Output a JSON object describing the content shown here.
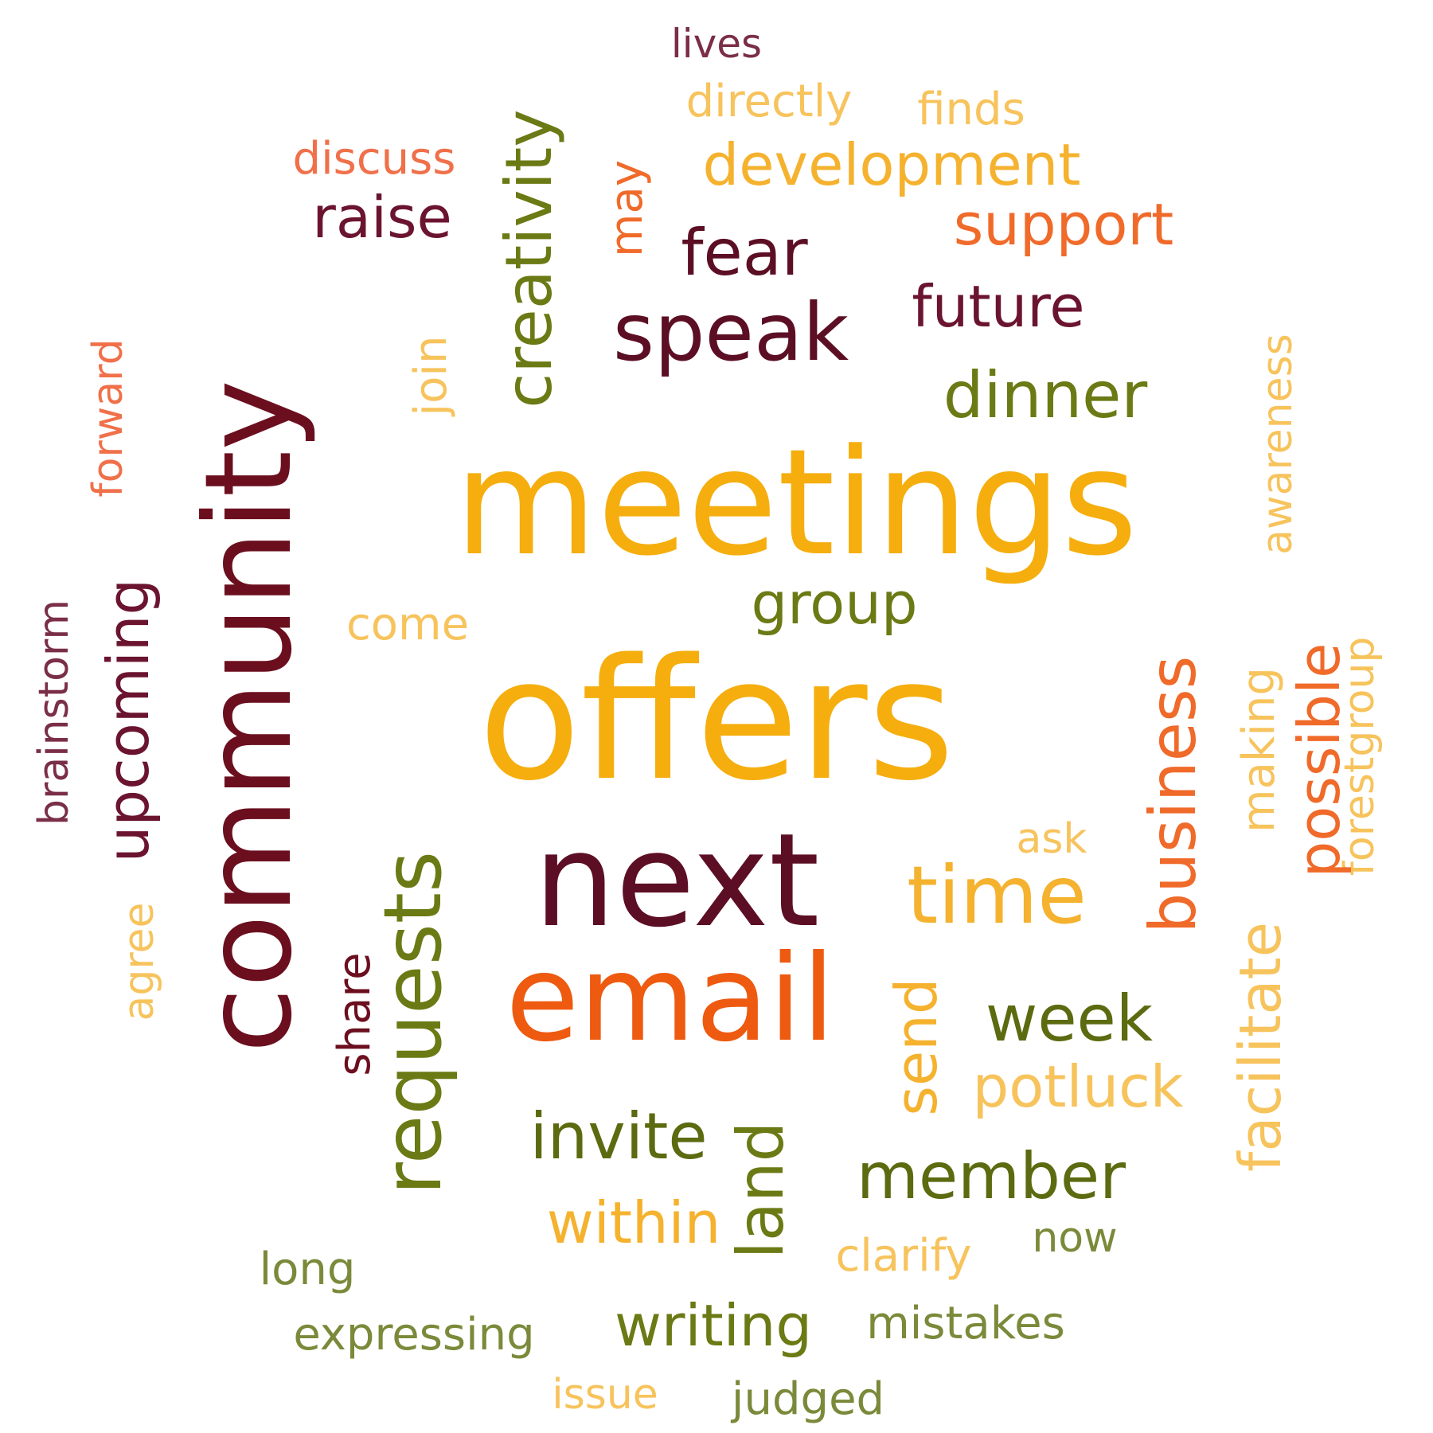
{
  "words": [
    {
      "text": "lives",
      "color": "#7a2e48",
      "orientation": "horizontal"
    },
    {
      "text": "directly",
      "color": "#f7c35c",
      "orientation": "horizontal"
    },
    {
      "text": "finds",
      "color": "#f7c35c",
      "orientation": "horizontal"
    },
    {
      "text": "discuss",
      "color": "#f0704a",
      "orientation": "horizontal"
    },
    {
      "text": "development",
      "color": "#f5b22f",
      "orientation": "horizontal"
    },
    {
      "text": "raise",
      "color": "#6b1430",
      "orientation": "horizontal"
    },
    {
      "text": "creativity",
      "color": "#6b7a14",
      "orientation": "vertical"
    },
    {
      "text": "may",
      "color": "#f06a2a",
      "orientation": "vertical"
    },
    {
      "text": "fear",
      "color": "#5c0f24",
      "orientation": "horizontal"
    },
    {
      "text": "support",
      "color": "#f06a2a",
      "orientation": "horizontal"
    },
    {
      "text": "community",
      "color": "#6b0f1f",
      "orientation": "vertical"
    },
    {
      "text": "speak",
      "color": "#5c0f24",
      "orientation": "horizontal"
    },
    {
      "text": "future",
      "color": "#6b1430",
      "orientation": "horizontal"
    },
    {
      "text": "forward",
      "color": "#f0704a",
      "orientation": "vertical"
    },
    {
      "text": "join",
      "color": "#f7c35c",
      "orientation": "vertical"
    },
    {
      "text": "awareness",
      "color": "#f7c35c",
      "orientation": "vertical"
    },
    {
      "text": "dinner",
      "color": "#6b7a14",
      "orientation": "horizontal"
    },
    {
      "text": "meetings",
      "color": "#f5ae0e",
      "orientation": "horizontal"
    },
    {
      "text": "brainstorm",
      "color": "#7a2e48",
      "orientation": "vertical"
    },
    {
      "text": "upcoming",
      "color": "#6b1430",
      "orientation": "vertical"
    },
    {
      "text": "group",
      "color": "#6b7a14",
      "orientation": "horizontal"
    },
    {
      "text": "come",
      "color": "#f7c35c",
      "orientation": "horizontal"
    },
    {
      "text": "forestgroup",
      "color": "#f7c35c",
      "orientation": "vertical"
    },
    {
      "text": "offers",
      "color": "#f5ae0e",
      "orientation": "horizontal"
    },
    {
      "text": "business",
      "color": "#f06a2a",
      "orientation": "vertical"
    },
    {
      "text": "making",
      "color": "#f7c35c",
      "orientation": "vertical"
    },
    {
      "text": "possible",
      "color": "#f06a2a",
      "orientation": "vertical"
    },
    {
      "text": "ask",
      "color": "#f7c35c",
      "orientation": "horizontal"
    },
    {
      "text": "next",
      "color": "#5c0f24",
      "orientation": "horizontal"
    },
    {
      "text": "time",
      "color": "#f5b22f",
      "orientation": "horizontal"
    },
    {
      "text": "requests",
      "color": "#6b7a14",
      "orientation": "vertical"
    },
    {
      "text": "agree",
      "color": "#f7c35c",
      "orientation": "vertical"
    },
    {
      "text": "share",
      "color": "#6b0f1f",
      "orientation": "vertical"
    },
    {
      "text": "facilitate",
      "color": "#f7c35c",
      "orientation": "vertical"
    },
    {
      "text": "email",
      "color": "#ee5a10",
      "orientation": "horizontal"
    },
    {
      "text": "send",
      "color": "#f5b22f",
      "orientation": "vertical"
    },
    {
      "text": "week",
      "color": "#5c6a10",
      "orientation": "horizontal"
    },
    {
      "text": "potluck",
      "color": "#f7c35c",
      "orientation": "horizontal"
    },
    {
      "text": "invite",
      "color": "#5c6a10",
      "orientation": "horizontal"
    },
    {
      "text": "land",
      "color": "#6b7a14",
      "orientation": "vertical"
    },
    {
      "text": "member",
      "color": "#5c6a10",
      "orientation": "horizontal"
    },
    {
      "text": "within",
      "color": "#f5b22f",
      "orientation": "horizontal"
    },
    {
      "text": "long",
      "color": "#7a8a3a",
      "orientation": "horizontal"
    },
    {
      "text": "clarify",
      "color": "#f7c35c",
      "orientation": "horizontal"
    },
    {
      "text": "now",
      "color": "#7a8a3a",
      "orientation": "horizontal"
    },
    {
      "text": "writing",
      "color": "#6b7a14",
      "orientation": "horizontal"
    },
    {
      "text": "expressing",
      "color": "#7a8a3a",
      "orientation": "horizontal"
    },
    {
      "text": "mistakes",
      "color": "#7a8a3a",
      "orientation": "horizontal"
    },
    {
      "text": "issue",
      "color": "#f7c35c",
      "orientation": "horizontal"
    },
    {
      "text": "judged",
      "color": "#7a8a3a",
      "orientation": "horizontal"
    }
  ]
}
